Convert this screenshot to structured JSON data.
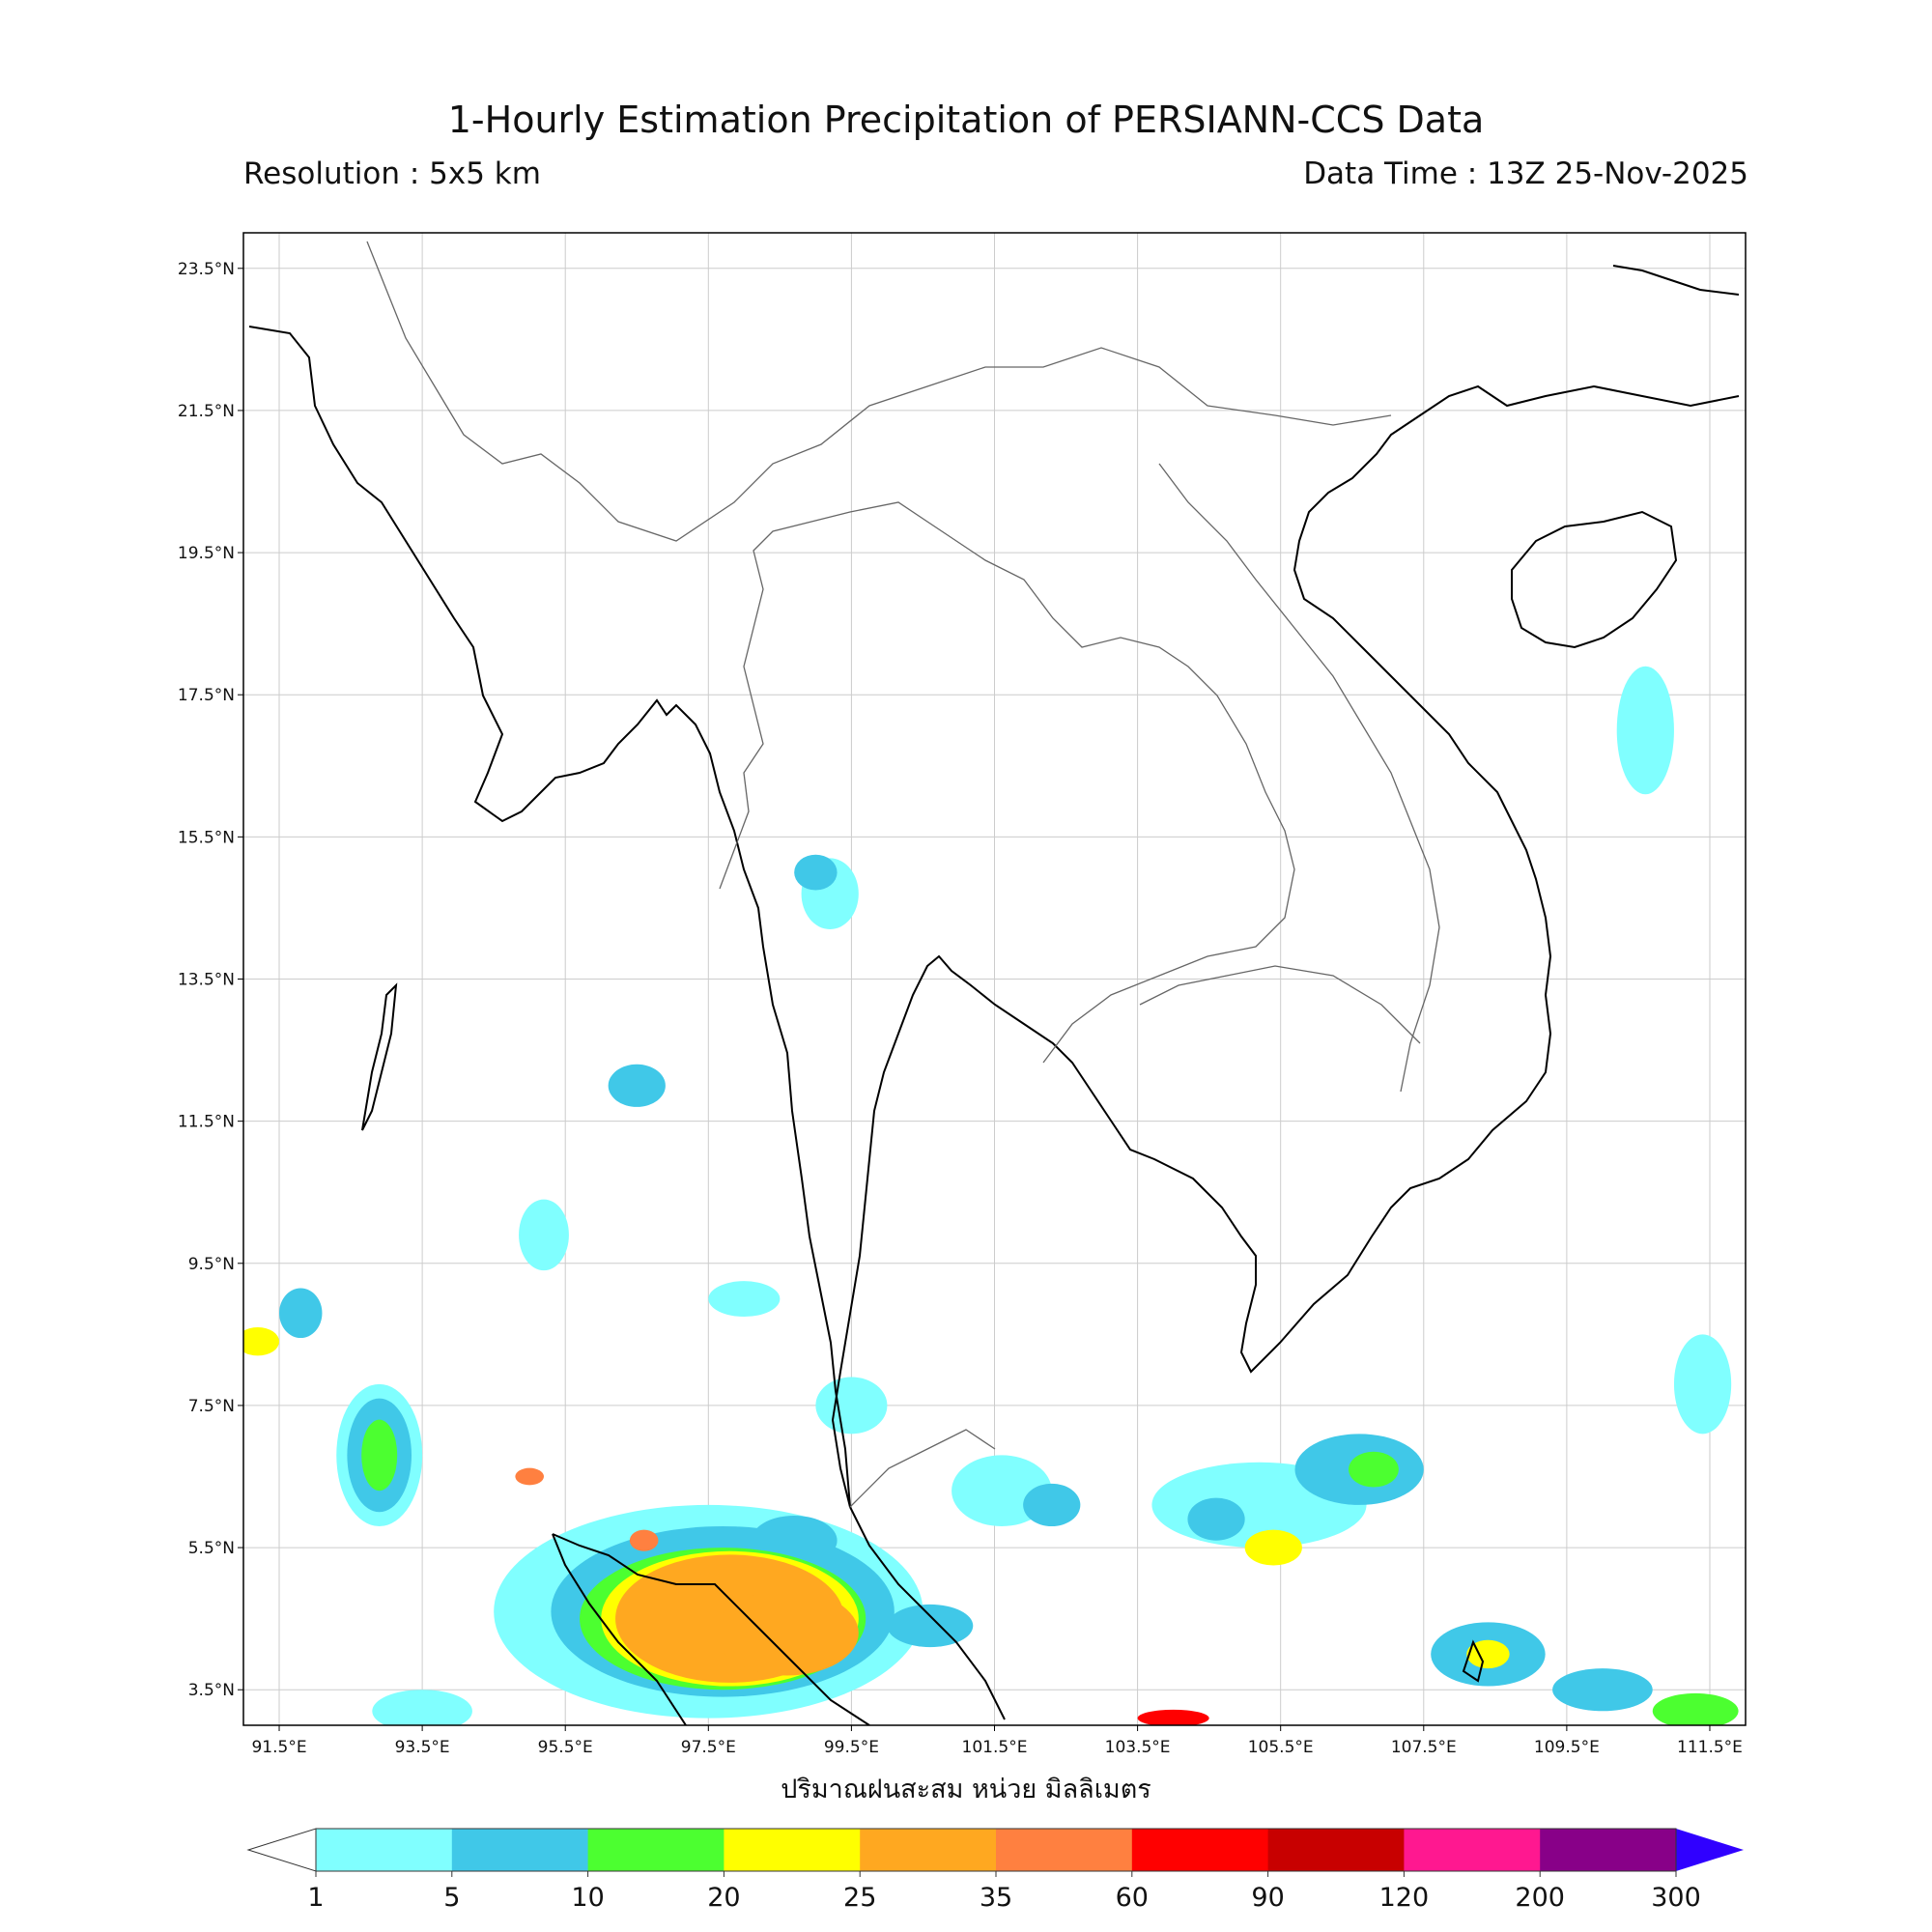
{
  "title": "1-Hourly Estimation Precipitation of PERSIANN-CCS Data",
  "resolution": "Resolution : 5x5 km",
  "data_time": "Data Time : 13Z 25-Nov-2025",
  "units_label": "ปริมาณฝนสะสม หน่วย มิลลิเมตร",
  "map": {
    "lon_range": [
      91.0,
      112.0
    ],
    "lat_range": [
      3.0,
      24.0
    ],
    "lon_ticks": [
      {
        "value": 91.5,
        "label": "91.5°E"
      },
      {
        "value": 93.5,
        "label": "93.5°E"
      },
      {
        "value": 95.5,
        "label": "95.5°E"
      },
      {
        "value": 97.5,
        "label": "97.5°E"
      },
      {
        "value": 99.5,
        "label": "99.5°E"
      },
      {
        "value": 101.5,
        "label": "101.5°E"
      },
      {
        "value": 103.5,
        "label": "103.5°E"
      },
      {
        "value": 105.5,
        "label": "105.5°E"
      },
      {
        "value": 107.5,
        "label": "107.5°E"
      },
      {
        "value": 109.5,
        "label": "109.5°E"
      },
      {
        "value": 111.5,
        "label": "111.5°E"
      }
    ],
    "lat_ticks": [
      {
        "value": 3.5,
        "label": "3.5°N"
      },
      {
        "value": 5.5,
        "label": "5.5°N"
      },
      {
        "value": 7.5,
        "label": "7.5°N"
      },
      {
        "value": 9.5,
        "label": "9.5°N"
      },
      {
        "value": 11.5,
        "label": "11.5°N"
      },
      {
        "value": 13.5,
        "label": "13.5°N"
      },
      {
        "value": 15.5,
        "label": "15.5°N"
      },
      {
        "value": 17.5,
        "label": "17.5°N"
      },
      {
        "value": 19.5,
        "label": "19.5°N"
      },
      {
        "value": 21.5,
        "label": "21.5°N"
      },
      {
        "value": 23.5,
        "label": "23.5°N"
      }
    ],
    "coastline_color": "#000000",
    "border_color": "#666666",
    "grid_color": "#cccccc"
  },
  "colorbar": {
    "levels": [
      "1",
      "5",
      "10",
      "20",
      "25",
      "35",
      "60",
      "90",
      "120",
      "200",
      "300"
    ],
    "colors": [
      "#80ffff",
      "#40c8e8",
      "#4cff30",
      "#ffff00",
      "#ffa820",
      "#ff8040",
      "#ff0000",
      "#c80000",
      "#ff1890",
      "#880088",
      "#3000ff"
    ],
    "under_color": "#ffffff",
    "over_color": "#3000ff"
  },
  "rain_cells": [
    {
      "lon": 97.8,
      "lat": 4.5,
      "rx": 1.6,
      "ry": 0.9,
      "level": 4
    },
    {
      "lon": 98.6,
      "lat": 4.3,
      "rx": 1.0,
      "ry": 0.6,
      "level": 4
    },
    {
      "lon": 97.5,
      "lat": 4.6,
      "rx": 3.0,
      "ry": 1.5,
      "level": 0
    },
    {
      "lon": 97.7,
      "lat": 4.6,
      "rx": 2.4,
      "ry": 1.2,
      "level": 1
    },
    {
      "lon": 97.7,
      "lat": 4.5,
      "rx": 2.0,
      "ry": 1.0,
      "level": 2
    },
    {
      "lon": 97.8,
      "lat": 4.5,
      "rx": 1.8,
      "ry": 0.95,
      "level": 3
    },
    {
      "lon": 92.9,
      "lat": 6.8,
      "rx": 0.6,
      "ry": 1.0,
      "level": 0
    },
    {
      "lon": 92.9,
      "lat": 6.8,
      "rx": 0.45,
      "ry": 0.8,
      "level": 1
    },
    {
      "lon": 92.9,
      "lat": 6.8,
      "rx": 0.25,
      "ry": 0.5,
      "level": 2
    },
    {
      "lon": 91.8,
      "lat": 8.8,
      "rx": 0.3,
      "ry": 0.35,
      "level": 1
    },
    {
      "lon": 91.2,
      "lat": 8.4,
      "rx": 0.3,
      "ry": 0.2,
      "level": 3
    },
    {
      "lon": 96.5,
      "lat": 12.0,
      "rx": 0.4,
      "ry": 0.3,
      "level": 1
    },
    {
      "lon": 95.2,
      "lat": 9.9,
      "rx": 0.35,
      "ry": 0.5,
      "level": 0
    },
    {
      "lon": 105.2,
      "lat": 6.1,
      "rx": 1.5,
      "ry": 0.6,
      "level": 0
    },
    {
      "lon": 105.4,
      "lat": 5.5,
      "rx": 0.4,
      "ry": 0.25,
      "level": 3
    },
    {
      "lon": 104.6,
      "lat": 5.9,
      "rx": 0.4,
      "ry": 0.3,
      "level": 1
    },
    {
      "lon": 106.6,
      "lat": 6.6,
      "rx": 0.9,
      "ry": 0.5,
      "level": 1
    },
    {
      "lon": 106.8,
      "lat": 6.6,
      "rx": 0.35,
      "ry": 0.25,
      "level": 2
    },
    {
      "lon": 108.4,
      "lat": 4.0,
      "rx": 0.8,
      "ry": 0.45,
      "level": 1
    },
    {
      "lon": 108.4,
      "lat": 4.0,
      "rx": 0.3,
      "ry": 0.2,
      "level": 3
    },
    {
      "lon": 110.0,
      "lat": 3.5,
      "rx": 0.7,
      "ry": 0.3,
      "level": 1
    },
    {
      "lon": 111.3,
      "lat": 3.2,
      "rx": 0.6,
      "ry": 0.25,
      "level": 2
    },
    {
      "lon": 101.6,
      "lat": 6.3,
      "rx": 0.7,
      "ry": 0.5,
      "level": 0
    },
    {
      "lon": 102.3,
      "lat": 6.1,
      "rx": 0.4,
      "ry": 0.3,
      "level": 1
    },
    {
      "lon": 104.0,
      "lat": 3.1,
      "rx": 0.5,
      "ry": 0.12,
      "level": 6
    },
    {
      "lon": 100.6,
      "lat": 4.4,
      "rx": 0.6,
      "ry": 0.3,
      "level": 1
    },
    {
      "lon": 98.7,
      "lat": 5.6,
      "rx": 0.6,
      "ry": 0.35,
      "level": 1
    },
    {
      "lon": 96.6,
      "lat": 5.6,
      "rx": 0.2,
      "ry": 0.15,
      "level": 5
    },
    {
      "lon": 95.0,
      "lat": 6.5,
      "rx": 0.2,
      "ry": 0.12,
      "level": 5
    },
    {
      "lon": 111.4,
      "lat": 7.8,
      "rx": 0.4,
      "ry": 0.7,
      "level": 0
    },
    {
      "lon": 110.6,
      "lat": 17.0,
      "rx": 0.4,
      "ry": 0.9,
      "level": 0
    },
    {
      "lon": 99.2,
      "lat": 14.7,
      "rx": 0.4,
      "ry": 0.5,
      "level": 0
    },
    {
      "lon": 99.5,
      "lat": 7.5,
      "rx": 0.5,
      "ry": 0.4,
      "level": 0
    },
    {
      "lon": 93.5,
      "lat": 3.2,
      "rx": 0.7,
      "ry": 0.3,
      "level": 0
    },
    {
      "lon": 98.0,
      "lat": 9.0,
      "rx": 0.5,
      "ry": 0.25,
      "level": 0
    },
    {
      "lon": 99.0,
      "lat": 15.0,
      "rx": 0.3,
      "ry": 0.25,
      "level": 1
    }
  ]
}
